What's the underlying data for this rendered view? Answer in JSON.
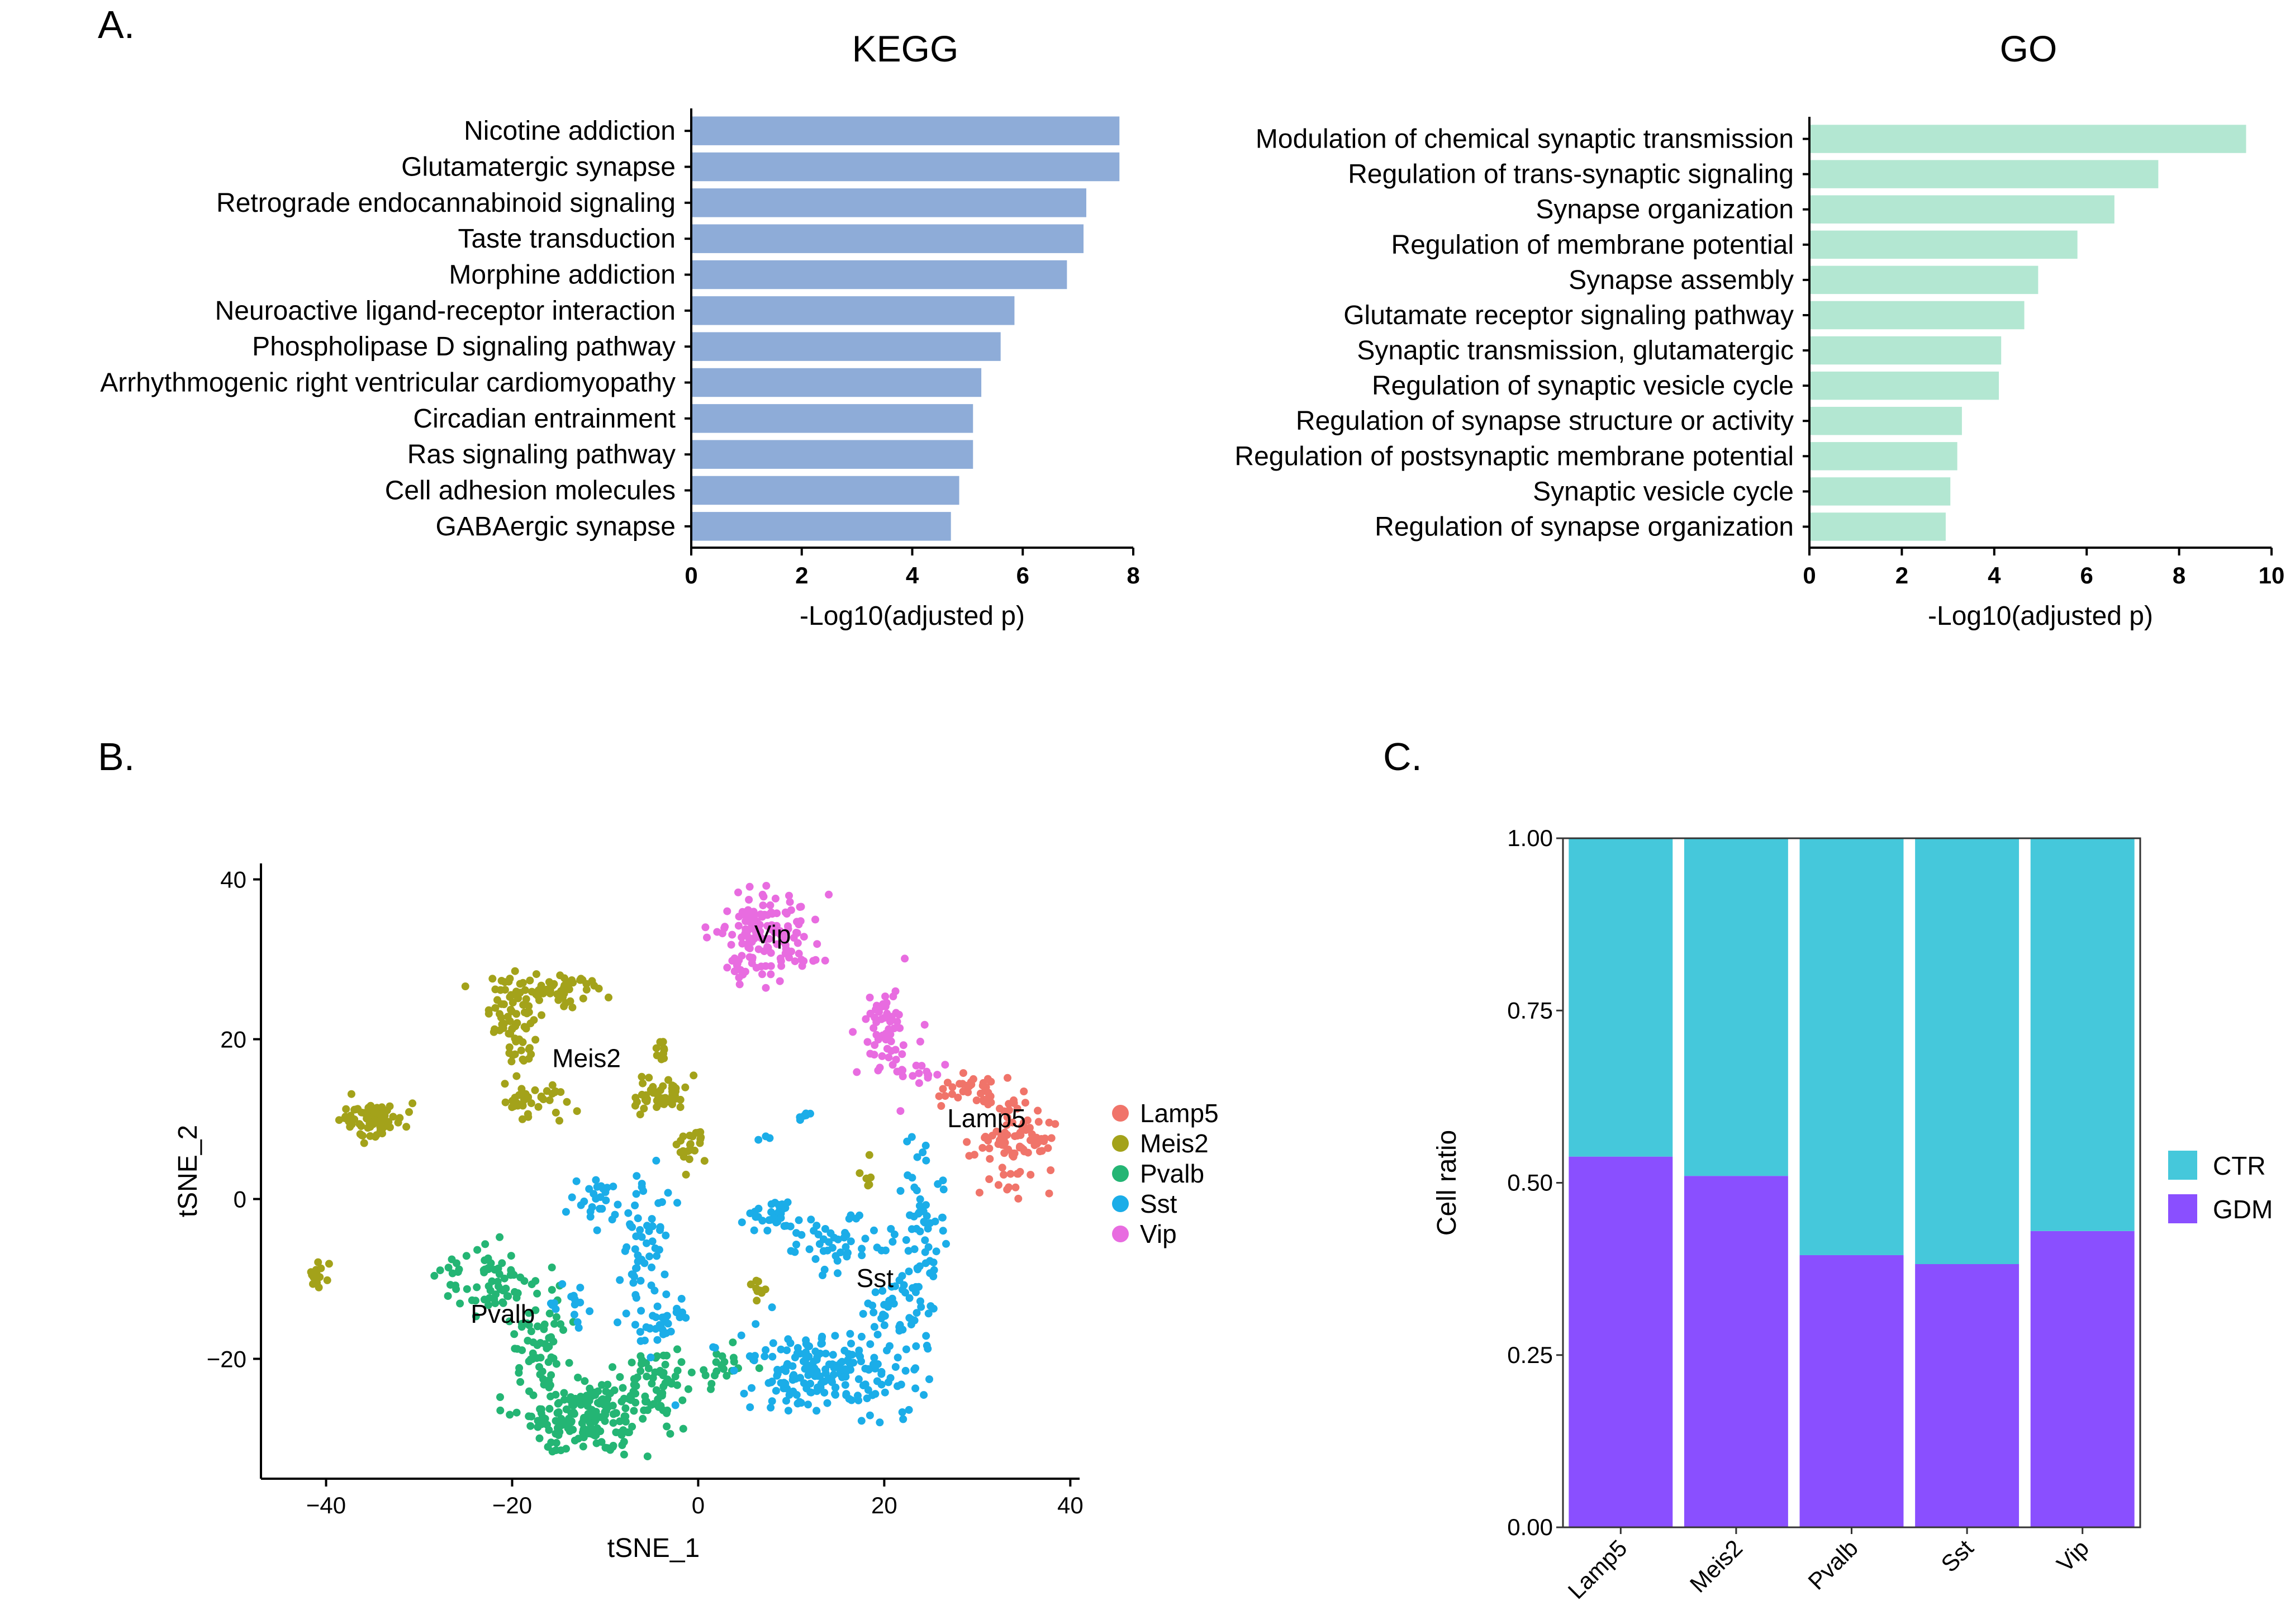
{
  "chart_data": [
    {
      "panel": "A.",
      "type": "bar",
      "orientation": "horizontal",
      "title": "KEGG",
      "xlabel": "-Log10(adjusted p)",
      "ylabel": "",
      "xlim": [
        0,
        8
      ],
      "xticks": [
        0,
        2,
        4,
        6,
        8
      ],
      "color": "#8EACD8",
      "categories": [
        "Nicotine addiction",
        "Glutamatergic synapse",
        "Retrograde endocannabinoid signaling",
        "Taste transduction",
        "Morphine addiction",
        "Neuroactive ligand-receptor interaction",
        "Phospholipase D signaling pathway",
        "Arrhythmogenic right ventricular cardiomyopathy",
        "Circadian entrainment",
        "Ras signaling pathway",
        "Cell adhesion molecules",
        "GABAergic synapse"
      ],
      "values": [
        7.75,
        7.75,
        7.15,
        7.1,
        6.8,
        5.85,
        5.6,
        5.25,
        5.1,
        5.1,
        4.85,
        4.7
      ]
    },
    {
      "panel": "",
      "type": "bar",
      "orientation": "horizontal",
      "title": "GO",
      "xlabel": "-Log10(adjusted p)",
      "ylabel": "",
      "xlim": [
        0,
        10
      ],
      "xticks": [
        0,
        2,
        4,
        6,
        8,
        10
      ],
      "color": "#B3E7D2",
      "categories": [
        "Modulation of chemical synaptic transmission",
        "Regulation of trans-synaptic signaling",
        "Synapse organization",
        "Regulation of membrane potential",
        "Synapse assembly",
        "Glutamate receptor signaling pathway",
        "Synaptic transmission, glutamatergic",
        "Regulation of synaptic vesicle cycle",
        "Regulation of synapse structure or activity",
        "Regulation of postsynaptic membrane potential",
        "Synaptic vesicle cycle",
        "Regulation of synapse organization"
      ],
      "values": [
        9.45,
        7.55,
        6.6,
        5.8,
        4.95,
        4.65,
        4.15,
        4.1,
        3.3,
        3.2,
        3.05,
        2.95
      ]
    },
    {
      "panel": "B.",
      "type": "scatter",
      "title": "",
      "xlabel": "tSNE_1",
      "ylabel": "tSNE_2",
      "xlim": [
        -47,
        41
      ],
      "ylim": [
        -35,
        42
      ],
      "xticks": [
        -40,
        -20,
        0,
        20,
        40
      ],
      "xtick_labels": [
        "−40",
        "−20",
        "0",
        "20",
        "40"
      ],
      "yticks": [
        -20,
        0,
        20,
        40
      ],
      "ytick_labels": [
        "−20",
        "0",
        "20",
        "40"
      ],
      "legend": [
        {
          "name": "Lamp5",
          "color": "#F0746A"
        },
        {
          "name": "Meis2",
          "color": "#A3A21A"
        },
        {
          "name": "Pvalb",
          "color": "#24B574"
        },
        {
          "name": "Sst",
          "color": "#1BADE8"
        },
        {
          "name": "Vip",
          "color": "#E86CE0"
        }
      ],
      "cluster_labels": [
        {
          "text": "Vip",
          "x": 8,
          "y": 32,
          "series": "Vip"
        },
        {
          "text": "Meis2",
          "x": -12,
          "y": 16.5,
          "series": "Meis2"
        },
        {
          "text": "Lamp5",
          "x": 31,
          "y": 9,
          "series": "Lamp5"
        },
        {
          "text": "Sst",
          "x": 19,
          "y": -11,
          "series": "Sst"
        },
        {
          "text": "Pvalb",
          "x": -21,
          "y": -15.5,
          "series": "Pvalb"
        }
      ],
      "clusters": [
        {
          "series": "Vip",
          "cx": 7,
          "cy": 33,
          "sx": 2.5,
          "sy": 2.5,
          "n": 130
        },
        {
          "series": "Vip",
          "cx": 4.5,
          "cy": 28.5,
          "sx": 0.6,
          "sy": 1.0,
          "n": 10
        },
        {
          "series": "Vip",
          "cx": 11.5,
          "cy": 30,
          "sx": 1.2,
          "sy": 0.6,
          "n": 10
        },
        {
          "series": "Vip",
          "cx": 20,
          "cy": 22,
          "sx": 1.3,
          "sy": 3.0,
          "n": 55
        },
        {
          "series": "Vip",
          "cx": 24,
          "cy": 16,
          "sx": 2.0,
          "sy": 0.7,
          "n": 18
        },
        {
          "series": "Lamp5",
          "cx": 30,
          "cy": 14,
          "sx": 2.0,
          "sy": 1.0,
          "n": 35
        },
        {
          "series": "Lamp5",
          "cx": 34,
          "cy": 7,
          "sx": 2.0,
          "sy": 2.6,
          "n": 90
        },
        {
          "series": "Meis2",
          "cx": -20,
          "cy": 24,
          "sx": 1.6,
          "sy": 2.2,
          "n": 60
        },
        {
          "series": "Meis2",
          "cx": -14,
          "cy": 26,
          "sx": 2.6,
          "sy": 1.1,
          "n": 45
        },
        {
          "series": "Meis2",
          "cx": -19,
          "cy": 18.5,
          "sx": 0.9,
          "sy": 1.8,
          "n": 18
        },
        {
          "series": "Meis2",
          "cx": -19,
          "cy": 12,
          "sx": 2.2,
          "sy": 1.0,
          "n": 40
        },
        {
          "series": "Meis2",
          "cx": -35,
          "cy": 10,
          "sx": 1.7,
          "sy": 1.0,
          "n": 75
        },
        {
          "series": "Meis2",
          "cx": -41,
          "cy": -9.5,
          "sx": 0.6,
          "sy": 0.8,
          "n": 18
        },
        {
          "series": "Meis2",
          "cx": -4,
          "cy": 19,
          "sx": 0.6,
          "sy": 0.9,
          "n": 10
        },
        {
          "series": "Meis2",
          "cx": -4,
          "cy": 13,
          "sx": 1.4,
          "sy": 1.2,
          "n": 50
        },
        {
          "series": "Meis2",
          "cx": -1,
          "cy": 6.5,
          "sx": 0.7,
          "sy": 1.3,
          "n": 22
        },
        {
          "series": "Meis2",
          "cx": 6.5,
          "cy": -11.5,
          "sx": 0.5,
          "sy": 0.7,
          "n": 10
        },
        {
          "series": "Meis2",
          "cx": 18,
          "cy": 3,
          "sx": 0.4,
          "sy": 1.0,
          "n": 6
        },
        {
          "series": "Pvalb",
          "cx": -22,
          "cy": -10,
          "sx": 2.5,
          "sy": 2.0,
          "n": 70
        },
        {
          "series": "Pvalb",
          "cx": -17,
          "cy": -19,
          "sx": 1.5,
          "sy": 3.0,
          "n": 55
        },
        {
          "series": "Pvalb",
          "cx": -12,
          "cy": -27,
          "sx": 3.5,
          "sy": 2.6,
          "n": 190
        },
        {
          "series": "Pvalb",
          "cx": -4,
          "cy": -23,
          "sx": 2.2,
          "sy": 1.8,
          "n": 55
        },
        {
          "series": "Pvalb",
          "cx": 2.5,
          "cy": -21,
          "sx": 1.4,
          "sy": 0.8,
          "n": 18
        },
        {
          "series": "Sst",
          "cx": -11,
          "cy": 0,
          "sx": 1.2,
          "sy": 1.4,
          "n": 25
        },
        {
          "series": "Sst",
          "cx": -6,
          "cy": -6,
          "sx": 1.5,
          "sy": 5.5,
          "n": 60
        },
        {
          "series": "Sst",
          "cx": -3.5,
          "cy": -15,
          "sx": 1.5,
          "sy": 1.5,
          "n": 30
        },
        {
          "series": "Sst",
          "cx": -13.5,
          "cy": -13,
          "sx": 1.2,
          "sy": 1.8,
          "n": 15
        },
        {
          "series": "Sst",
          "cx": 8,
          "cy": -2,
          "sx": 1.8,
          "sy": 1.2,
          "n": 30
        },
        {
          "series": "Sst",
          "cx": 15,
          "cy": -5.5,
          "sx": 2.3,
          "sy": 2.0,
          "n": 45
        },
        {
          "series": "Sst",
          "cx": 24,
          "cy": -6,
          "sx": 1.2,
          "sy": 6.0,
          "n": 75
        },
        {
          "series": "Sst",
          "cx": 13,
          "cy": -21.5,
          "sx": 5.0,
          "sy": 2.5,
          "n": 200
        },
        {
          "series": "Sst",
          "cx": 21,
          "cy": -14,
          "sx": 1.5,
          "sy": 2.0,
          "n": 25
        },
        {
          "series": "Sst",
          "cx": 11.5,
          "cy": 10.5,
          "sx": 0.6,
          "sy": 0.3,
          "n": 6
        },
        {
          "series": "Sst",
          "cx": 7,
          "cy": 7.5,
          "sx": 0.5,
          "sy": 0.3,
          "n": 3
        }
      ]
    },
    {
      "panel": "C.",
      "type": "bar",
      "stacked": true,
      "title": "",
      "xlabel": "",
      "ylabel": "Cell ratio",
      "ylim": [
        0,
        1
      ],
      "yticks": [
        0,
        0.25,
        0.5,
        0.75,
        1
      ],
      "ytick_labels": [
        "0.00",
        "0.25",
        "0.50",
        "0.75",
        "1.00"
      ],
      "categories": [
        "Lamp5",
        "Meis2",
        "Pvalb",
        "Sst",
        "Vip"
      ],
      "series": [
        {
          "name": "GDM",
          "color": "#8A4FFF",
          "values": [
            0.538,
            0.51,
            0.395,
            0.382,
            0.43
          ]
        },
        {
          "name": "CTR",
          "color": "#45C8DB",
          "values": [
            0.462,
            0.49,
            0.605,
            0.618,
            0.57
          ]
        }
      ],
      "legend": [
        {
          "name": "CTR",
          "color": "#45C8DB"
        },
        {
          "name": "GDM",
          "color": "#8A4FFF"
        }
      ]
    }
  ]
}
